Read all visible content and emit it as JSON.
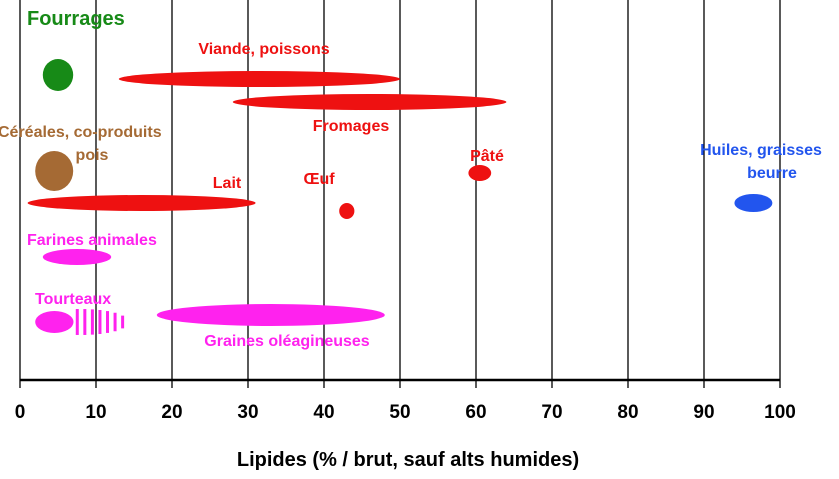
{
  "chart_data": {
    "type": "range",
    "xlabel": "Lipides (% / brut, sauf alts humides)",
    "xlim": [
      0,
      100
    ],
    "xticks": [
      0,
      10,
      20,
      30,
      40,
      50,
      60,
      70,
      80,
      90,
      100
    ],
    "grid": "vertical",
    "groups": [
      {
        "name": "Fourrages",
        "color": "#178a17",
        "min": 3,
        "max": 7
      },
      {
        "name": "Viande, poissons",
        "color": "#ee1111",
        "min": 13,
        "max": 50
      },
      {
        "name": "Fromages",
        "color": "#ee1111",
        "min": 28,
        "max": 64
      },
      {
        "name": "Céréales, co-produits",
        "color": "#a56a34",
        "min": 2,
        "max": 7
      },
      {
        "name": "pois",
        "color": "#a56a34",
        "min": 2,
        "max": 7
      },
      {
        "name": "Pâté",
        "color": "#ee1111",
        "min": 59,
        "max": 62
      },
      {
        "name": "Huiles, graisses",
        "color": "#2255ee",
        "min": 94,
        "max": 99
      },
      {
        "name": "beurre",
        "color": "#2255ee",
        "min": 94,
        "max": 99
      },
      {
        "name": "Lait",
        "color": "#ee1111",
        "min": 1,
        "max": 31
      },
      {
        "name": "Œuf",
        "color": "#ee1111",
        "min": 42,
        "max": 44
      },
      {
        "name": "Farines animales",
        "color": "#ff22ee",
        "min": 3,
        "max": 12
      },
      {
        "name": "Tourteaux",
        "color": "#ff22ee",
        "min": 2,
        "max": 14
      },
      {
        "name": "Graines oléagineuses",
        "color": "#ff22ee",
        "min": 18,
        "max": 48
      }
    ]
  }
}
